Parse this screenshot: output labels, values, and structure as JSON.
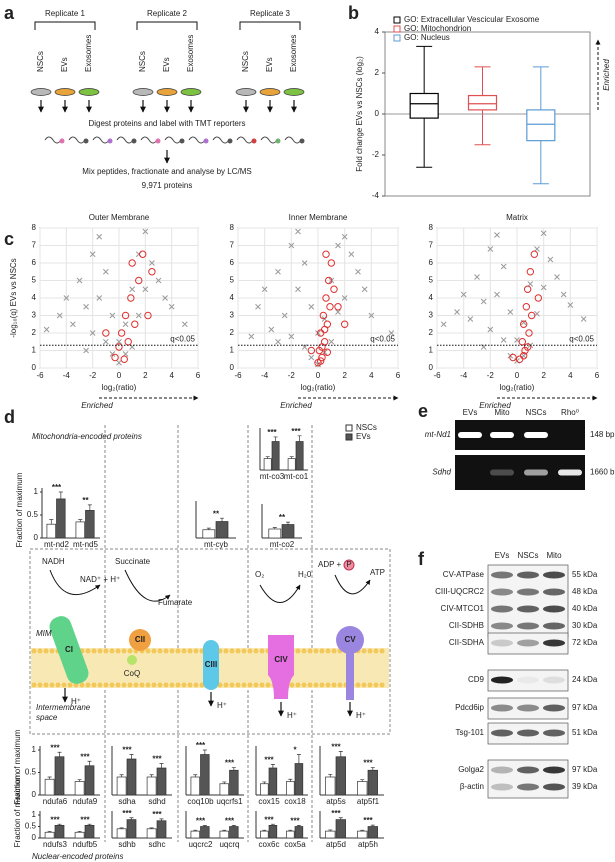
{
  "panel_labels": [
    "a",
    "b",
    "c",
    "d",
    "e",
    "f"
  ],
  "workflow": {
    "replicates": [
      "Replicate 1",
      "Replicate 2",
      "Replicate 3"
    ],
    "samples": [
      "NSCs",
      "EVs",
      "Exosomes"
    ],
    "step1": "Digest proteins and label with TMT reporters",
    "step2": "Mix peptides, fractionate and analyse by LC/MS",
    "step3": "9,971 proteins"
  },
  "section_titles": [
    "Mitochondria-encoded proteins",
    "Nuclear-encoded proteins"
  ],
  "pathway": {
    "complexes": [
      "CI",
      "CII",
      "CIII",
      "CIV",
      "CV"
    ],
    "nadh": "NADH",
    "nad": "NAD⁺ + H⁺",
    "succinate": "Succinate",
    "fumarate": "Fumarate",
    "o2": "O₂",
    "h2o": "H₂0",
    "adp": "ADP +",
    "p": "P",
    "atp": "ATP",
    "coq": "CoQ",
    "proton": "H⁺",
    "mim": "MIM",
    "ims": [
      "Intermembrane",
      "space"
    ]
  },
  "gel": {
    "lanes": [
      "EVs",
      "Mito",
      "NSCs",
      "Rho⁰"
    ],
    "rows": [
      {
        "label": "mt-Nd1",
        "size": "148 bp"
      },
      {
        "label": "Sdhd",
        "size": "1660 bp"
      }
    ]
  },
  "blot": {
    "lanes": [
      "EVs",
      "NSCs",
      "Mito"
    ],
    "groups": [
      [
        {
          "label": "CV-ATPase",
          "size": "55 kDa"
        },
        {
          "label": "CIII-UQCRC2",
          "size": "48 kDa"
        },
        {
          "label": "CIV-MTCO1",
          "size": "40 kDa"
        },
        {
          "label": "CII-SDHB",
          "size": "30 kDa"
        }
      ],
      [
        {
          "label": "CII-SDHA",
          "size": "72 kDa"
        }
      ],
      [
        {
          "label": "CD9",
          "size": "24 kDa"
        }
      ],
      [
        {
          "label": "Pdcd6ip",
          "size": "97 kDa"
        }
      ],
      [
        {
          "label": "Tsg-101",
          "size": "51 kDa"
        }
      ],
      [
        {
          "label": "Golga2",
          "size": "97 kDa"
        },
        {
          "label": "β-actin",
          "size": "39 kDa"
        }
      ]
    ]
  },
  "chart_data": [
    {
      "type": "box",
      "y_label": "Fold change EVs vs NSCs (log₂)",
      "annotation": "Enriched",
      "ylim": [
        -4,
        4
      ],
      "yticks": [
        -4,
        -2,
        0,
        2,
        4
      ],
      "series": [
        {
          "name": "GO: Extracellular Vescicular Exosome",
          "color": "#000000",
          "min": -2.6,
          "q1": -0.2,
          "median": 0.5,
          "q3": 1.0,
          "max": 3.3
        },
        {
          "name": "GO: Mitochondrion",
          "color": "#e05050",
          "min": -1.5,
          "q1": 0.2,
          "median": 0.5,
          "q3": 0.9,
          "max": 2.3
        },
        {
          "name": "GO: Nucleus",
          "color": "#5b9bd5",
          "min": -3.4,
          "q1": -1.3,
          "median": -0.5,
          "q3": 0.2,
          "max": 2.3
        }
      ]
    },
    {
      "type": "scatter",
      "title": "Outer Membrane",
      "x_label": "log₂(ratio)",
      "y_label": "-log₁₀(q) EVs vs NSCs",
      "annotation": "Enriched",
      "threshold": 1.3,
      "threshold_label": "q<0.05",
      "grid": true,
      "xlim": [
        -6,
        6
      ],
      "xticks": [
        -6,
        -4,
        -2,
        0,
        2,
        4,
        6
      ],
      "ylim": [
        0,
        8
      ],
      "yticks": [
        0,
        1,
        2,
        3,
        4,
        5,
        6,
        7,
        8
      ],
      "series": [
        {
          "color": "#999999",
          "marker": "x",
          "x": [
            -5.5,
            -4.5,
            -4,
            -3.5,
            -3,
            -2.5,
            -2,
            -2,
            -1.5,
            -1.5,
            -1,
            -1,
            -0.5,
            -0.5,
            0,
            0,
            0.5,
            0.5,
            1,
            1,
            1.5,
            1.5,
            2,
            2,
            2.5,
            3,
            3.5,
            4,
            5,
            -2.5
          ],
          "values": [
            2.2,
            3.0,
            4.0,
            2.5,
            5.0,
            3.5,
            6.5,
            2.0,
            7.5,
            4.0,
            5.5,
            1.5,
            3.0,
            0.8,
            1.5,
            0.3,
            2.5,
            0.8,
            4.5,
            1.2,
            6.5,
            3.0,
            7.8,
            4.5,
            6.0,
            5.0,
            4.0,
            3.5,
            2.5,
            1.0
          ]
        },
        {
          "color": "#e03030",
          "marker": "circle",
          "x": [
            -0.3,
            0,
            0.2,
            0.4,
            0.5,
            0.7,
            0.9,
            1,
            1.2,
            1.5,
            1.8,
            2.2,
            2.5,
            -1
          ],
          "values": [
            0.6,
            1.2,
            2.0,
            0.5,
            3.0,
            1.5,
            4.0,
            6.0,
            2.5,
            5.0,
            6.5,
            3.0,
            5.5,
            2.0
          ]
        }
      ]
    },
    {
      "type": "scatter",
      "title": "Inner Membrane",
      "x_label": "log₂(ratio)",
      "annotation": "Enriched",
      "threshold": 1.3,
      "threshold_label": "q<0.05",
      "grid": true,
      "xlim": [
        -6,
        6
      ],
      "xticks": [
        -6,
        -4,
        -2,
        0,
        2,
        4,
        6
      ],
      "ylim": [
        0,
        8
      ],
      "yticks": [
        0,
        1,
        2,
        3,
        4,
        5,
        6,
        7,
        8
      ],
      "series": [
        {
          "color": "#999999",
          "marker": "x",
          "x": [
            -5,
            -4.5,
            -4,
            -3.5,
            -3,
            -2.5,
            -2,
            -2,
            -1.5,
            -1.5,
            -1,
            -1,
            -0.5,
            -0.5,
            0,
            0,
            0.5,
            0.5,
            1,
            1,
            1.5,
            1.5,
            2,
            2,
            2.5,
            3,
            3.5,
            4,
            5.5,
            -3
          ],
          "values": [
            1.8,
            3.5,
            4.5,
            2.2,
            5.5,
            3.0,
            7.0,
            1.8,
            7.8,
            4.5,
            6.0,
            1.2,
            3.5,
            0.6,
            2.0,
            0.2,
            2.8,
            0.9,
            5.0,
            1.5,
            7.0,
            3.2,
            7.5,
            4.0,
            6.5,
            5.5,
            4.5,
            3.0,
            2.0,
            1.5
          ]
        },
        {
          "color": "#e03030",
          "marker": "circle",
          "x": [
            0,
            0.1,
            0.2,
            0.3,
            0.4,
            0.5,
            0.6,
            0.7,
            0.8,
            0.9,
            1,
            0.3,
            0.5,
            0.7,
            1.2,
            1.5,
            2,
            0.2,
            0.6,
            -0.5
          ],
          "values": [
            0.3,
            1,
            2,
            0.6,
            3,
            1.5,
            4,
            2.5,
            5,
            3.5,
            6,
            1.2,
            2.2,
            0.9,
            4.5,
            3.5,
            2.5,
            0.4,
            6.5,
            1
          ]
        }
      ]
    },
    {
      "type": "scatter",
      "title": "Matrix",
      "x_label": "log₂(ratio)",
      "annotation": "Enriched",
      "threshold": 1.3,
      "threshold_label": "q<0.05",
      "grid": true,
      "xlim": [
        -6,
        6
      ],
      "xticks": [
        -6,
        -4,
        -2,
        0,
        2,
        4,
        6
      ],
      "ylim": [
        0,
        8
      ],
      "yticks": [
        0,
        1,
        2,
        3,
        4,
        5,
        6,
        7,
        8
      ],
      "series": [
        {
          "color": "#999999",
          "marker": "x",
          "x": [
            -5.5,
            -4.5,
            -4,
            -3.5,
            -3,
            -2.5,
            -2,
            -2,
            -1.5,
            -1.5,
            -1,
            -1,
            -0.5,
            -0.5,
            0,
            0,
            0.5,
            0.5,
            1,
            1,
            1.5,
            1.5,
            2,
            2,
            2.5,
            3,
            3.5,
            4,
            5,
            -2.5
          ],
          "values": [
            2.5,
            3.2,
            4.2,
            2.8,
            5.2,
            3.8,
            6.8,
            2.2,
            7.6,
            4.2,
            5.8,
            1.6,
            3.2,
            0.7,
            1.6,
            0.4,
            2.6,
            0.7,
            4.8,
            1.3,
            6.8,
            3.1,
            7.7,
            4.6,
            6.2,
            5.2,
            4.2,
            3.6,
            2.8,
            1.2
          ]
        },
        {
          "color": "#e03030",
          "marker": "circle",
          "x": [
            0.2,
            0.4,
            0.5,
            0.6,
            0.7,
            0.8,
            0.9,
            1,
            1.1,
            1.3,
            1.6,
            0.5,
            0.8,
            -0.3
          ],
          "values": [
            0.5,
            1.5,
            2.5,
            1,
            3.5,
            4.5,
            2,
            5.5,
            3,
            6.5,
            4,
            0.7,
            1.2,
            0.6
          ]
        }
      ]
    },
    {
      "type": "bar",
      "y_label": "Fraction of maximum",
      "categories": [
        "mt-nd2",
        "mt-nd5"
      ],
      "significance": [
        "***",
        "**"
      ],
      "ylim": [
        0,
        1
      ],
      "yticks": [
        0,
        0.5,
        1
      ],
      "series": [
        {
          "color": "#ffffff",
          "values": [
            0.3,
            0.35
          ],
          "errors": [
            0.1,
            0.05
          ]
        },
        {
          "color": "#555555",
          "values": [
            0.85,
            0.6
          ],
          "errors": [
            0.15,
            0.12
          ]
        }
      ]
    },
    {
      "type": "bar",
      "categories": [
        "mt-cyb"
      ],
      "significance": [
        "**"
      ],
      "ylim": [
        0,
        1
      ],
      "series": [
        {
          "color": "#ffffff",
          "values": [
            0.25
          ],
          "errors": [
            0.05
          ]
        },
        {
          "color": "#555555",
          "values": [
            0.5
          ],
          "errors": [
            0.1
          ]
        }
      ]
    },
    {
      "type": "bar",
      "categories": [
        "mt-co3",
        "mt-co1"
      ],
      "significance": [
        "***",
        "***"
      ],
      "ylim": [
        0,
        1
      ],
      "series": [
        {
          "name": "NSCs",
          "color": "#ffffff",
          "values": [
            0.3,
            0.3
          ],
          "errors": [
            0.05,
            0.05
          ]
        },
        {
          "name": "EVs",
          "color": "#555555",
          "values": [
            0.75,
            0.75
          ],
          "errors": [
            0.12,
            0.15
          ]
        }
      ]
    },
    {
      "type": "bar",
      "categories": [
        "mt-co2"
      ],
      "significance": [
        "**"
      ],
      "ylim": [
        0,
        1
      ],
      "series": [
        {
          "color": "#ffffff",
          "values": [
            0.3
          ],
          "errors": [
            0.05
          ]
        },
        {
          "color": "#555555",
          "values": [
            0.45
          ],
          "errors": [
            0.08
          ]
        }
      ]
    },
    {
      "type": "bar",
      "y_label": "Fraction of maximum",
      "categories": [
        "ndufa6",
        "ndufa9"
      ],
      "significance": [
        "***",
        "***"
      ],
      "ylim": [
        0,
        1
      ],
      "yticks": [
        0,
        0.5,
        1
      ],
      "series": [
        {
          "color": "#ffffff",
          "values": [
            0.35,
            0.3
          ],
          "errors": [
            0.05,
            0.04
          ]
        },
        {
          "color": "#555555",
          "values": [
            0.85,
            0.65
          ],
          "errors": [
            0.1,
            0.1
          ]
        }
      ]
    },
    {
      "type": "bar",
      "categories": [
        "sdha",
        "sdhd"
      ],
      "significance": [
        "***",
        "***"
      ],
      "ylim": [
        0,
        1
      ],
      "series": [
        {
          "color": "#ffffff",
          "values": [
            0.4,
            0.4
          ],
          "errors": [
            0.05,
            0.05
          ]
        },
        {
          "color": "#555555",
          "values": [
            0.8,
            0.6
          ],
          "errors": [
            0.1,
            0.1
          ]
        }
      ]
    },
    {
      "type": "bar",
      "categories": [
        "coq10b",
        "uqcrfs1"
      ],
      "significance": [
        "***",
        "***"
      ],
      "ylim": [
        0,
        1
      ],
      "series": [
        {
          "color": "#ffffff",
          "values": [
            0.4,
            0.25
          ],
          "errors": [
            0.05,
            0.04
          ]
        },
        {
          "color": "#555555",
          "values": [
            0.9,
            0.55
          ],
          "errors": [
            0.1,
            0.06
          ]
        }
      ]
    },
    {
      "type": "bar",
      "categories": [
        "cox15",
        "cox18"
      ],
      "significance": [
        "***",
        "*"
      ],
      "ylim": [
        0,
        1
      ],
      "series": [
        {
          "color": "#ffffff",
          "values": [
            0.25,
            0.3
          ],
          "errors": [
            0.04,
            0.05
          ]
        },
        {
          "color": "#555555",
          "values": [
            0.6,
            0.7
          ],
          "errors": [
            0.08,
            0.2
          ]
        }
      ]
    },
    {
      "type": "bar",
      "categories": [
        "atp5s",
        "atp5f1"
      ],
      "significance": [
        "***",
        "***"
      ],
      "ylim": [
        0,
        1
      ],
      "series": [
        {
          "color": "#ffffff",
          "values": [
            0.4,
            0.3
          ],
          "errors": [
            0.06,
            0.04
          ]
        },
        {
          "color": "#555555",
          "values": [
            0.85,
            0.55
          ],
          "errors": [
            0.12,
            0.06
          ]
        }
      ]
    },
    {
      "type": "bar",
      "y_label": "Fraction of maximum",
      "categories": [
        "ndufs3",
        "ndufb5"
      ],
      "significance": [
        "***",
        "***"
      ],
      "ylim": [
        0,
        1
      ],
      "yticks": [
        0,
        0.5,
        1
      ],
      "series": [
        {
          "color": "#ffffff",
          "values": [
            0.25,
            0.25
          ],
          "errors": [
            0.04,
            0.04
          ]
        },
        {
          "color": "#555555",
          "values": [
            0.55,
            0.55
          ],
          "errors": [
            0.05,
            0.05
          ]
        }
      ]
    },
    {
      "type": "bar",
      "categories": [
        "sdhb",
        "sdhc"
      ],
      "significance": [
        "***",
        "***"
      ],
      "ylim": [
        0,
        1
      ],
      "series": [
        {
          "color": "#ffffff",
          "values": [
            0.4,
            0.4
          ],
          "errors": [
            0.04,
            0.04
          ]
        },
        {
          "color": "#555555",
          "values": [
            0.8,
            0.75
          ],
          "errors": [
            0.08,
            0.08
          ]
        }
      ]
    },
    {
      "type": "bar",
      "categories": [
        "uqcrc2",
        "uqcrq"
      ],
      "significance": [
        "***",
        "***"
      ],
      "ylim": [
        0,
        1
      ],
      "series": [
        {
          "color": "#ffffff",
          "values": [
            0.3,
            0.3
          ],
          "errors": [
            0.04,
            0.04
          ]
        },
        {
          "color": "#555555",
          "values": [
            0.5,
            0.5
          ],
          "errors": [
            0.05,
            0.05
          ]
        }
      ]
    },
    {
      "type": "bar",
      "categories": [
        "cox6c",
        "cox5a"
      ],
      "significance": [
        "***",
        "***"
      ],
      "ylim": [
        0,
        1
      ],
      "series": [
        {
          "color": "#ffffff",
          "values": [
            0.3,
            0.3
          ],
          "errors": [
            0.04,
            0.04
          ]
        },
        {
          "color": "#555555",
          "values": [
            0.55,
            0.5
          ],
          "errors": [
            0.05,
            0.05
          ]
        }
      ]
    },
    {
      "type": "bar",
      "categories": [
        "atp5d",
        "atp5h"
      ],
      "significance": [
        "***",
        "***"
      ],
      "ylim": [
        0,
        1
      ],
      "series": [
        {
          "color": "#ffffff",
          "values": [
            0.3,
            0.3
          ],
          "errors": [
            0.05,
            0.04
          ]
        },
        {
          "color": "#555555",
          "values": [
            0.8,
            0.5
          ],
          "errors": [
            0.08,
            0.06
          ]
        }
      ]
    }
  ]
}
